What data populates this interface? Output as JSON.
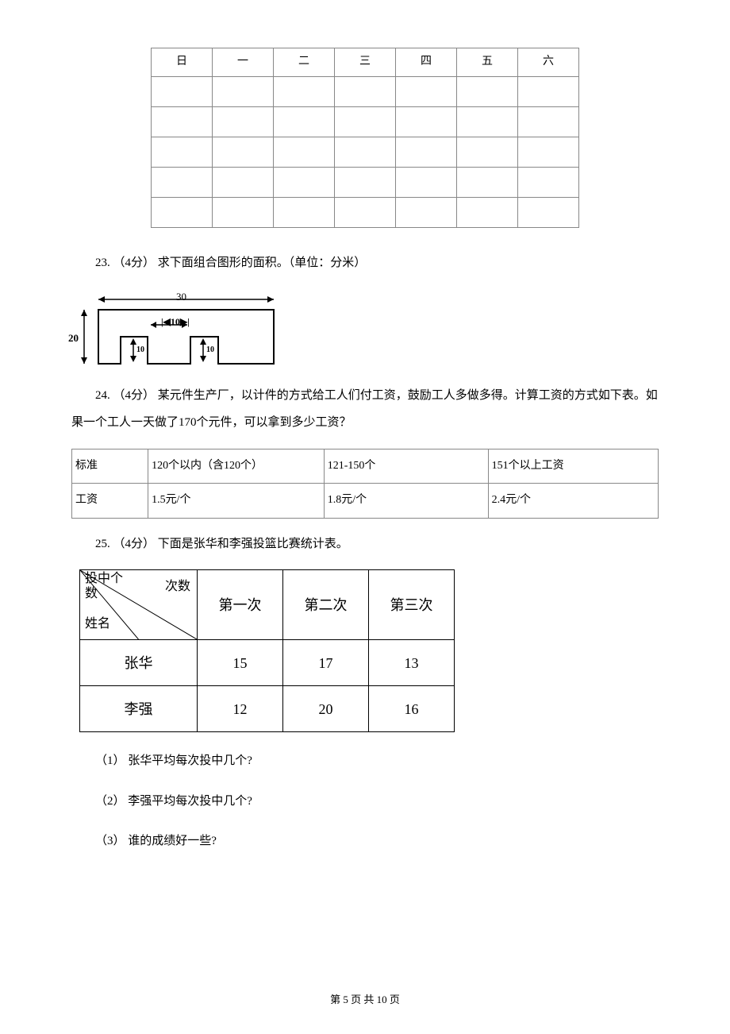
{
  "calendar": {
    "headers": [
      "日",
      "一",
      "二",
      "三",
      "四",
      "五",
      "六"
    ],
    "row_count": 5
  },
  "q23": {
    "label": "23.",
    "points": "（4分）",
    "text": " 求下面组合图形的面积。（单位：分米）",
    "diagram": {
      "width_label": "30",
      "height_label": "20",
      "inner_width": "10",
      "inner_h1": "10",
      "inner_h2": "10"
    }
  },
  "q24": {
    "label": "24.",
    "points": "（4分）",
    "text_pre": " 某元件生产厂，以计件的方式给工人们付工资，鼓励工人多做多得。计算工资的方式如下表。如",
    "text_post": "果一个工人一天做了170个元件，可以拿到多少工资？",
    "table": {
      "rows": [
        [
          "标准",
          "120个以内（含120个）",
          "121-150个",
          "151个以上工资"
        ],
        [
          "工资",
          "1.5元/个",
          "1.8元/个",
          "2.4元/个"
        ]
      ]
    }
  },
  "q25": {
    "label": "25.",
    "points": "（4分）",
    "text": " 下面是张华和李强投篮比赛统计表。",
    "table": {
      "diag_top_left": "投中个\n数",
      "diag_top_right": "次数",
      "diag_bottom_left": "姓名",
      "col_headers": [
        "第一次",
        "第二次",
        "第三次"
      ],
      "rows": [
        {
          "name": "张华",
          "values": [
            "15",
            "17",
            "13"
          ]
        },
        {
          "name": "李强",
          "values": [
            "12",
            "20",
            "16"
          ]
        }
      ]
    },
    "sub": [
      "（1） 张华平均每次投中几个?",
      "（2） 李强平均每次投中几个?",
      "（3） 谁的成绩好一些?"
    ]
  },
  "footer": {
    "text": "第 5 页 共 10 页"
  }
}
